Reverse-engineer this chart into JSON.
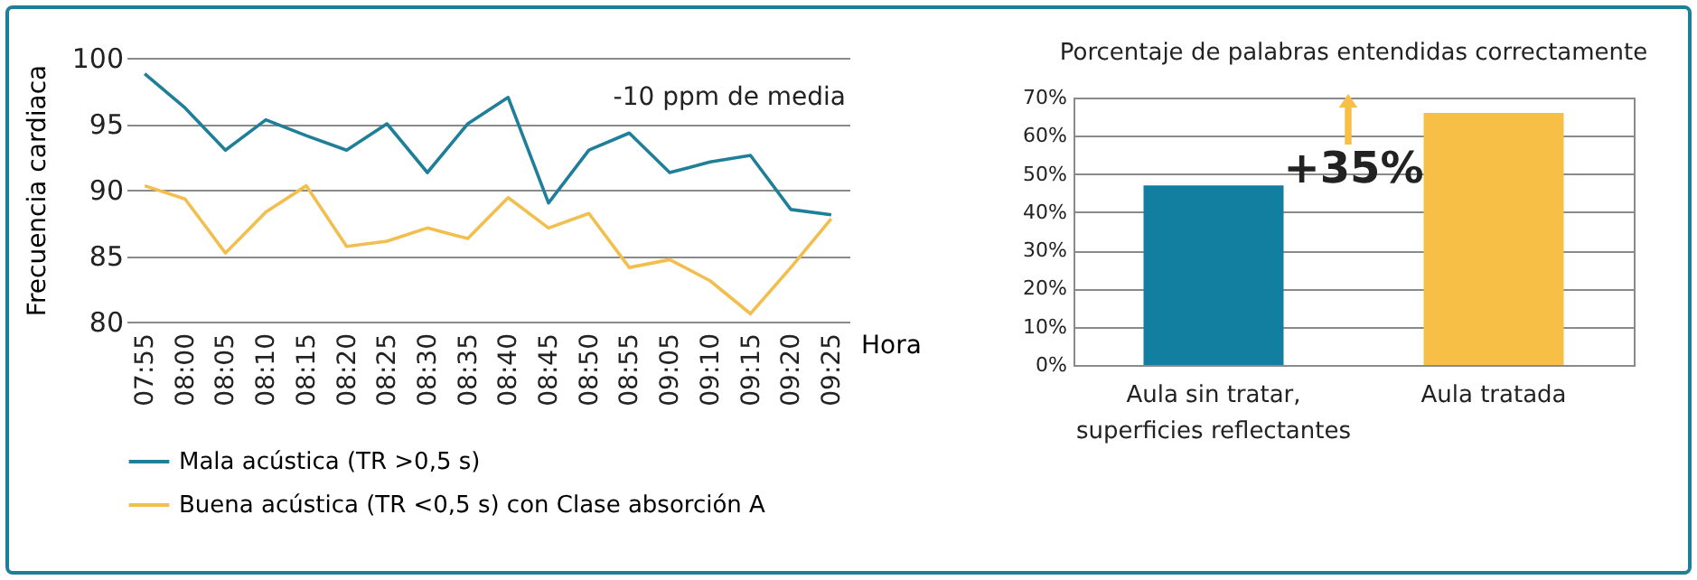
{
  "chart_data": [
    {
      "type": "line",
      "xlabel": "Hora",
      "ylabel": "Frecuencia cardiaca",
      "categories": [
        "07:55",
        "08:00",
        "08:05",
        "08:10",
        "08:15",
        "08:20",
        "08:25",
        "08:30",
        "08:35",
        "08:40",
        "08:45",
        "08:50",
        "08:55",
        "09:05",
        "09:10",
        "09:15",
        "09:20",
        "09:25"
      ],
      "series": [
        {
          "name": "Mala acústica (TR >0,5 s)",
          "color": "#1f7f99",
          "values": [
            98.8,
            96.2,
            93.0,
            95.3,
            94.1,
            93.0,
            95.0,
            91.3,
            95.0,
            97.0,
            89.0,
            93.0,
            94.3,
            91.3,
            92.1,
            92.6,
            88.5,
            88.1
          ]
        },
        {
          "name": "Buena acústica (TR <0,5 s) con Clase absorción A",
          "color": "#f2bf4e",
          "values": [
            90.3,
            89.3,
            85.2,
            88.3,
            90.3,
            85.7,
            86.1,
            87.1,
            86.3,
            89.4,
            87.1,
            88.2,
            84.1,
            84.7,
            83.1,
            80.6,
            84.1,
            87.8
          ]
        }
      ],
      "ylim": [
        80,
        100
      ],
      "yticks": [
        80,
        85,
        90,
        95,
        100
      ],
      "grid": "y",
      "legend": "bottom",
      "line_style": "solid",
      "annotations": [
        "-10 ppm de media"
      ]
    },
    {
      "type": "bar",
      "title": "Porcentaje de palabras entendidas correctamente",
      "categories": [
        "Aula sin tratar, superficies reflectantes",
        "Aula tratada"
      ],
      "values": [
        47,
        66
      ],
      "colors": [
        "#127fa0",
        "#f7bf45"
      ],
      "ylim": [
        0,
        70
      ],
      "yticks": [
        {
          "value": 0,
          "label": "0%"
        },
        {
          "value": 10,
          "label": "10%"
        },
        {
          "value": 20,
          "label": "20%"
        },
        {
          "value": 30,
          "label": "30%"
        },
        {
          "value": 40,
          "label": "40%"
        },
        {
          "value": 50,
          "label": "50%"
        },
        {
          "value": 60,
          "label": "60%"
        },
        {
          "value": 70,
          "label": "70%"
        }
      ],
      "grid": "y",
      "annotations": [
        "+35%"
      ]
    }
  ]
}
